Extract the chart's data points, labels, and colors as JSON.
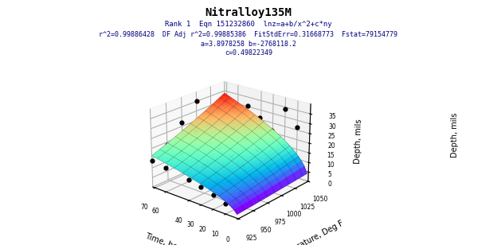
{
  "title": "Nitralloy135M",
  "subtitle_lines": [
    "Rank 1  Eqn 151232860  lnz=a+b/x^2+c*ny",
    "r^2=0.99886428  DF Adj r^2=0.99885386  FitStdErr=0.31668773  Fstat=79154779",
    "a=3.8978258 b=-2768118.2",
    "c=0.49822349"
  ],
  "xlabel": "Time, hours",
  "ylabel_left": "Depth, mils",
  "ylabel_right": "Depth, mils",
  "temp_label": "Temperature, Deg F",
  "time_range": [
    0,
    72
  ],
  "temp_range": [
    925,
    1050
  ],
  "depth_range": [
    0,
    40
  ],
  "a": 3.8978258,
  "b": -2768118.2,
  "c": 0.49822349,
  "time_ticks": [
    0,
    10,
    20,
    30,
    40,
    60,
    70
  ],
  "temp_ticks": [
    925,
    950,
    975,
    1000,
    1025,
    1050
  ],
  "depth_ticks": [
    0,
    5,
    10,
    15,
    20,
    25,
    30,
    35
  ],
  "scatter_points": [
    [
      10,
      925,
      5.2
    ],
    [
      10,
      950,
      7.1
    ],
    [
      10,
      975,
      10.5
    ],
    [
      10,
      1000,
      14.2
    ],
    [
      10,
      1025,
      19.8
    ],
    [
      10,
      1050,
      26.3
    ],
    [
      20,
      925,
      7.5
    ],
    [
      20,
      950,
      10.2
    ],
    [
      20,
      975,
      14.8
    ],
    [
      20,
      1000,
      19.5
    ],
    [
      20,
      1025,
      26.1
    ],
    [
      20,
      1050,
      34.2
    ],
    [
      30,
      925,
      9.1
    ],
    [
      30,
      950,
      12.5
    ],
    [
      30,
      975,
      17.9
    ],
    [
      30,
      1000,
      23.4
    ],
    [
      30,
      1025,
      31.0
    ],
    [
      40,
      925,
      10.4
    ],
    [
      40,
      950,
      14.2
    ],
    [
      40,
      975,
      20.5
    ],
    [
      40,
      1000,
      26.8
    ],
    [
      40,
      1025,
      35.2
    ],
    [
      60,
      925,
      12.5
    ],
    [
      60,
      950,
      17.1
    ],
    [
      60,
      975,
      24.6
    ],
    [
      60,
      1000,
      32.0
    ],
    [
      72,
      925,
      13.8
    ],
    [
      72,
      950,
      18.8
    ],
    [
      72,
      975,
      27.0
    ],
    [
      72,
      1000,
      35.0
    ]
  ],
  "background_color": "#ffffff",
  "title_fontsize": 10,
  "subtitle_fontsize": 6.5,
  "colormap": "rainbow",
  "n_grid": 30
}
